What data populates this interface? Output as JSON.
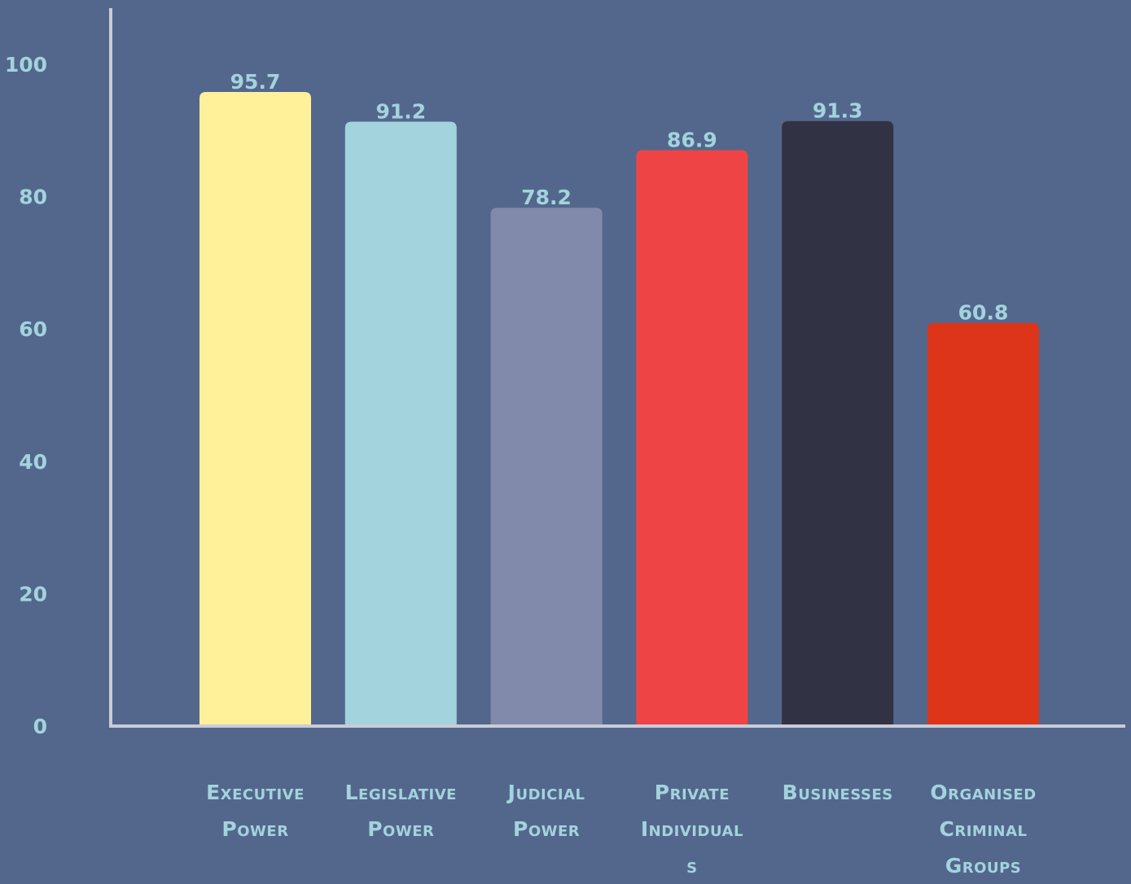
{
  "chart_data": {
    "type": "bar",
    "title": "",
    "xlabel": "",
    "ylabel": "",
    "ylim": [
      0,
      100
    ],
    "y_ticks": [
      0,
      20,
      40,
      60,
      80,
      100
    ],
    "grid": false,
    "categories": [
      "Executive Power",
      "Legislative Power",
      "Judicial Power",
      "Private Individuals",
      "Businesses",
      "Organised Criminal Groups"
    ],
    "category_label_lines": [
      [
        "Executive",
        "Power"
      ],
      [
        "Legislative",
        "Power"
      ],
      [
        "Judicial",
        "Power"
      ],
      [
        "Private",
        "Individual",
        "s"
      ],
      [
        "Businesses"
      ],
      [
        "Organised",
        "Criminal",
        "Groups"
      ]
    ],
    "values": [
      95.7,
      91.2,
      78.2,
      86.9,
      91.3,
      60.8
    ],
    "data_labels": [
      "95.7",
      "91.2",
      "78.2",
      "86.9",
      "91.3",
      "60.8"
    ],
    "colors": [
      "#fff09a",
      "#a3d3dc",
      "#818aab",
      "#ef4446",
      "#313244",
      "#dc3519"
    ]
  },
  "theme": {
    "background": "#53678d",
    "axis_color": "#c9ccd6",
    "text_color": "#a3d3dc"
  }
}
